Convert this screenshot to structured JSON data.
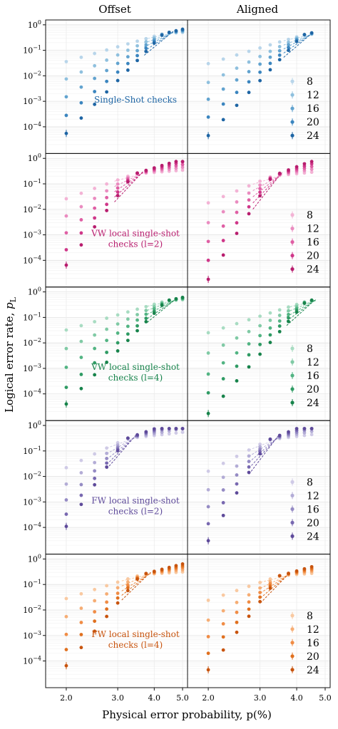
{
  "figure": {
    "col_titles": [
      "Offset",
      "Aligned"
    ],
    "ylabel_main": "Logical error rate, ",
    "ylabel_sym": "p",
    "ylabel_sub": "L",
    "xlabel": "Physical error probability, p(%)"
  },
  "chart_data": {
    "type": "scatter",
    "x_scale": "log",
    "y_scale": "log",
    "xlim": [
      1.7,
      5.2
    ],
    "ylim": [
      1.5e-05,
      1.2
    ],
    "x_ticks": [
      2.0,
      3.0,
      4.0,
      5.0
    ],
    "x_tick_labels": [
      "2.0",
      "3.0",
      "4.0",
      "5.0"
    ],
    "y_ticks": [
      1,
      0.1,
      0.01,
      0.001,
      0.0001
    ],
    "y_tick_labels": [
      "10^0",
      "10^-1",
      "10^-2",
      "10^-3",
      "10^-4"
    ],
    "sizes": [
      "8",
      "12",
      "16",
      "20",
      "24"
    ],
    "x_points_offset": [
      2.0,
      2.25,
      2.5,
      2.75,
      3.0,
      3.25,
      3.5,
      3.75,
      4.0,
      4.25,
      4.5,
      4.75,
      5.0
    ],
    "x_points_aligned": [
      2.0,
      2.25,
      2.5,
      2.75,
      3.0,
      3.25,
      3.5,
      3.75,
      4.0,
      4.25,
      4.5
    ],
    "grid": true,
    "rows": [
      {
        "label_lines": [
          "Single-Shot checks"
        ],
        "colors": [
          "#b8d5ea",
          "#8fc0de",
          "#62a3cf",
          "#3b85bf",
          "#1e65a4"
        ],
        "offset": {
          "p_low": [
            0.036,
            0.0075,
            0.0015,
            0.00028,
            5.5e-05
          ],
          "p_th": 4.3,
          "y_th": 0.45,
          "slope_factor": 0.9
        },
        "aligned": {
          "p_low": [
            0.03,
            0.0055,
            0.0012,
            0.00024,
            4.5e-05
          ],
          "p_th": 4.2,
          "y_th": 0.4,
          "slope_factor": 0.9
        }
      },
      {
        "label_lines": [
          "VW local single-shot",
          "checks (l=2)"
        ],
        "colors": [
          "#f3b3d5",
          "#ea8cc0",
          "#df5fa4",
          "#cf3789",
          "#b81d6e"
        ],
        "offset": {
          "p_low": [
            0.026,
            0.0055,
            0.0012,
            0.00026,
            6.5e-05
          ],
          "p_th": 3.4,
          "y_th": 0.24,
          "slope_factor": 0.9
        },
        "aligned": {
          "p_low": [
            0.018,
            0.003,
            0.00055,
            0.0001,
            1.8e-05
          ],
          "p_th": 3.3,
          "y_th": 0.2,
          "slope_factor": 0.95
        }
      },
      {
        "label_lines": [
          "VW local single-shot",
          "checks (l=4)"
        ],
        "colors": [
          "#a8dcc2",
          "#80caa5",
          "#52b483",
          "#2f9b64",
          "#17834b"
        ],
        "offset": {
          "p_low": [
            0.032,
            0.006,
            0.0011,
            0.00018,
            4e-05
          ],
          "p_th": 4.4,
          "y_th": 0.45,
          "slope_factor": 0.8
        },
        "aligned": {
          "p_low": [
            0.025,
            0.004,
            0.0006,
            0.00011,
            1.7e-05
          ],
          "p_th": 4.3,
          "y_th": 0.42,
          "slope_factor": 0.82
        }
      },
      {
        "label_lines": [
          "FW local single-shot",
          "checks (l=2)"
        ],
        "colors": [
          "#cfcae6",
          "#b3acd6",
          "#958bc4",
          "#7868b0",
          "#5e4a9a"
        ],
        "offset": {
          "p_low": [
            0.022,
            0.005,
            0.0012,
            0.00033,
            0.00011
          ],
          "p_th": 3.2,
          "y_th": 0.3,
          "slope_factor": 0.95
        },
        "aligned": {
          "p_low": [
            0.016,
            0.003,
            0.00065,
            0.00014,
            3e-05
          ],
          "p_th": 3.2,
          "y_th": 0.27,
          "slope_factor": 0.95
        }
      },
      {
        "label_lines": [
          "FW local single-shot",
          "checks (l=4)"
        ],
        "colors": [
          "#f9c9a1",
          "#f6ad74",
          "#f08c45",
          "#e0701f",
          "#c8540e"
        ],
        "offset": {
          "p_low": [
            0.028,
            0.0055,
            0.0011,
            0.00028,
            6.5e-05
          ],
          "p_th": 3.6,
          "y_th": 0.24,
          "slope_factor": 0.85
        },
        "aligned": {
          "p_low": [
            0.024,
            0.004,
            0.0009,
            0.0002,
            4.5e-05
          ],
          "p_th": 3.5,
          "y_th": 0.22,
          "slope_factor": 0.85
        }
      }
    ]
  }
}
